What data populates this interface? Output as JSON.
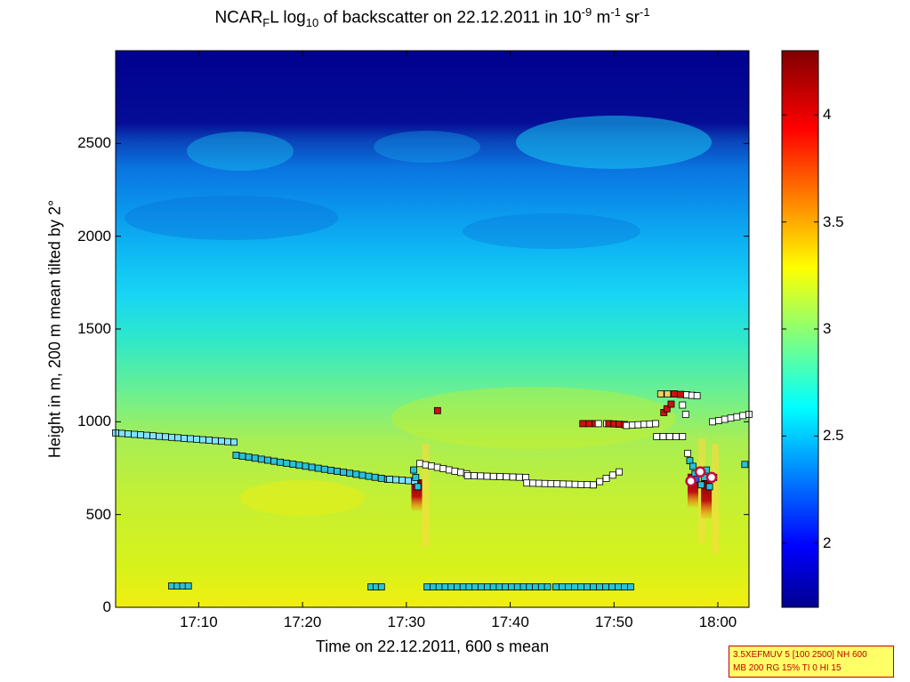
{
  "chart_data": {
    "type": "heatmap",
    "title_parts": {
      "prefix": "NCAR",
      "sub_f": "F",
      "mid": "L log",
      "sub_10": "10",
      "rest": " of backscatter on 22.12.2011 in 10",
      "sup_neg9": "-9",
      "unit_m": " m",
      "sup_neg1": "-1",
      "unit_sr": " sr",
      "sup_neg1b": "-1"
    },
    "xlabel": "Time on 22.12.2011, 600 s mean",
    "ylabel": "Height in m, 200 m mean tilted by 2°",
    "x_range_min": [
      1022,
      1083
    ],
    "x_ticks": [
      {
        "min": 1030,
        "label": "17:10"
      },
      {
        "min": 1040,
        "label": "17:20"
      },
      {
        "min": 1050,
        "label": "17:30"
      },
      {
        "min": 1060,
        "label": "17:40"
      },
      {
        "min": 1070,
        "label": "17:50"
      },
      {
        "min": 1080,
        "label": "18:00"
      }
    ],
    "y_range": [
      0,
      3000
    ],
    "y_ticks": [
      {
        "v": 0,
        "label": "0"
      },
      {
        "v": 500,
        "label": "500"
      },
      {
        "v": 1000,
        "label": "1000"
      },
      {
        "v": 1500,
        "label": "1500"
      },
      {
        "v": 2000,
        "label": "2000"
      },
      {
        "v": 2500,
        "label": "2500"
      }
    ],
    "colorbar": {
      "range": [
        1.7,
        4.3
      ],
      "ticks": [
        {
          "v": 2,
          "label": "2"
        },
        {
          "v": 2.5,
          "label": "2.5"
        },
        {
          "v": 3,
          "label": "3"
        },
        {
          "v": 3.5,
          "label": "3.5"
        },
        {
          "v": 4,
          "label": "4"
        }
      ]
    },
    "layer_markers": [
      {
        "t0": 1022.0,
        "t1": 1033.4,
        "h0": 940,
        "h1": 890,
        "color": "#7fe3ff"
      },
      {
        "t0": 1033.6,
        "t1": 1048.2,
        "h0": 820,
        "h1": 690,
        "color": "#29c2d6"
      },
      {
        "t0": 1048.4,
        "t1": 1050.8,
        "h0": 690,
        "h1": 680,
        "color": "#7fe3ff"
      },
      {
        "t0": 1051.3,
        "t1": 1055.8,
        "h0": 775,
        "h1": 720,
        "color": "#ffffff"
      },
      {
        "t0": 1055.9,
        "t1": 1061.5,
        "h0": 710,
        "h1": 700,
        "color": "#ffffff"
      },
      {
        "t0": 1061.6,
        "t1": 1068.0,
        "h0": 670,
        "h1": 660,
        "color": "#ffffff"
      },
      {
        "t0": 1068.0,
        "t1": 1070.5,
        "h0": 660,
        "h1": 730,
        "color": "#ffffff"
      },
      {
        "t0": 1067.0,
        "t1": 1068.2,
        "h0": 990,
        "h1": 990,
        "color": "#cc1111"
      },
      {
        "t0": 1068.5,
        "t1": 1069.3,
        "h0": 990,
        "h1": 990,
        "color": "#ffffff"
      },
      {
        "t0": 1069.5,
        "t1": 1071.0,
        "h0": 990,
        "h1": 985,
        "color": "#cc1111"
      },
      {
        "t0": 1071.2,
        "t1": 1074.0,
        "h0": 980,
        "h1": 990,
        "color": "#ffffff"
      },
      {
        "t0": 1074.1,
        "t1": 1076.6,
        "h0": 920,
        "h1": 920,
        "color": "#ffffff"
      },
      {
        "t0": 1074.5,
        "t1": 1075.8,
        "h0": 1150,
        "h1": 1150,
        "color": "#f0d060"
      },
      {
        "t0": 1075.8,
        "t1": 1077.0,
        "h0": 1150,
        "h1": 1145,
        "color": "#cc1111"
      },
      {
        "t0": 1077.0,
        "t1": 1078.0,
        "h0": 1145,
        "h1": 1140,
        "color": "#ffffff"
      },
      {
        "t0": 1079.5,
        "t1": 1083.0,
        "h0": 1000,
        "h1": 1040,
        "color": "#ffffff"
      },
      {
        "t0": 1027.4,
        "t1": 1029.0,
        "h0": 115,
        "h1": 115,
        "color": "#29c2d6"
      },
      {
        "t0": 1046.6,
        "t1": 1047.6,
        "h0": 110,
        "h1": 110,
        "color": "#29c2d6"
      },
      {
        "t0": 1052.0,
        "t1": 1057.2,
        "h0": 110,
        "h1": 110,
        "color": "#29c2d6"
      },
      {
        "t0": 1057.8,
        "t1": 1063.6,
        "h0": 110,
        "h1": 110,
        "color": "#29c2d6"
      },
      {
        "t0": 1064.4,
        "t1": 1071.6,
        "h0": 110,
        "h1": 110,
        "color": "#29c2d6"
      }
    ],
    "scatter_markers": [
      {
        "t": 1050.7,
        "h": 740,
        "color": "#29c2d6"
      },
      {
        "t": 1050.9,
        "h": 700,
        "color": "#29c2d6"
      },
      {
        "t": 1051.1,
        "h": 650,
        "color": "#29c2d6"
      },
      {
        "t": 1053.0,
        "h": 1060,
        "color": "#cc1111"
      },
      {
        "t": 1074.8,
        "h": 1050,
        "color": "#cc1111"
      },
      {
        "t": 1075.1,
        "h": 1070,
        "color": "#cc1111"
      },
      {
        "t": 1075.5,
        "h": 1095,
        "color": "#cc1111"
      },
      {
        "t": 1076.6,
        "h": 1090,
        "color": "#ffffff"
      },
      {
        "t": 1076.9,
        "h": 1040,
        "color": "#ffffff"
      },
      {
        "t": 1077.1,
        "h": 830,
        "color": "#ffffff"
      },
      {
        "t": 1077.3,
        "h": 790,
        "color": "#29c2d6"
      },
      {
        "t": 1077.6,
        "h": 760,
        "color": "#29c2d6"
      },
      {
        "t": 1077.8,
        "h": 720,
        "color": "#29c2d6"
      },
      {
        "t": 1077.9,
        "h": 690,
        "color": "#3355ff"
      },
      {
        "t": 1078.4,
        "h": 660,
        "color": "#29c2d6"
      },
      {
        "t": 1078.7,
        "h": 700,
        "color": "#29c2d6"
      },
      {
        "t": 1078.9,
        "h": 740,
        "color": "#29c2d6"
      },
      {
        "t": 1079.2,
        "h": 650,
        "color": "#29c2d6"
      },
      {
        "t": 1079.6,
        "h": 700,
        "color": "#cc1111"
      },
      {
        "t": 1082.6,
        "h": 770,
        "color": "#29c2d6"
      }
    ],
    "hotspots": [
      {
        "t": 1051.0,
        "h0": 520,
        "h1": 690
      },
      {
        "t": 1077.6,
        "h0": 540,
        "h1": 720
      },
      {
        "t": 1078.9,
        "h0": 480,
        "h1": 690
      }
    ]
  },
  "info_box": {
    "line1": "3.5XEFMUV 5 [100 2500] NH 600",
    "line2": "MB 200 RG 15% TI 0 HI 15"
  },
  "colors": {
    "deep_blue": "#00008f",
    "dark_red": "#800000",
    "box_fill": "#ffff66",
    "box_border": "#c00000"
  }
}
